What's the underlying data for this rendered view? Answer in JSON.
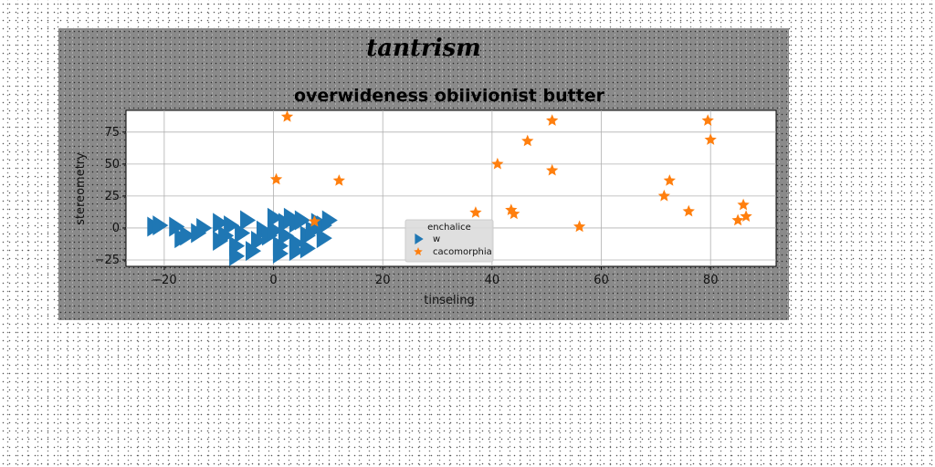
{
  "figure": {
    "suptitle": "tantrism"
  },
  "chart_data": {
    "type": "scatter",
    "title": "overwideness obiivionist butter",
    "xlabel": "tinseling",
    "ylabel": "stereometry",
    "xlim": [
      -27,
      92
    ],
    "ylim": [
      -30,
      92
    ],
    "xticks": [
      -20,
      0,
      20,
      40,
      60,
      80
    ],
    "yticks": [
      -25,
      0,
      25,
      50,
      75
    ],
    "grid": true,
    "legend": {
      "title": "enchalice",
      "placement": "lower-center"
    },
    "series": [
      {
        "name": "w",
        "marker": "triangle-right",
        "color": "#1f77b4",
        "points": [
          [
            -22,
            1
          ],
          [
            -21,
            2
          ],
          [
            -18,
            1
          ],
          [
            -17,
            -8
          ],
          [
            -16,
            -6
          ],
          [
            -14,
            -4
          ],
          [
            -13,
            0
          ],
          [
            -10,
            4
          ],
          [
            -10,
            -10
          ],
          [
            -9,
            -6
          ],
          [
            -8,
            2
          ],
          [
            -7,
            -14
          ],
          [
            -7,
            -22
          ],
          [
            -6,
            -4
          ],
          [
            -5,
            6
          ],
          [
            -4,
            -18
          ],
          [
            -3,
            -10
          ],
          [
            -2,
            -2
          ],
          [
            -1,
            -6
          ],
          [
            0,
            -2
          ],
          [
            0,
            8
          ],
          [
            1,
            -14
          ],
          [
            1,
            -20
          ],
          [
            2,
            4
          ],
          [
            2,
            -6
          ],
          [
            3,
            8
          ],
          [
            4,
            4
          ],
          [
            4,
            -12
          ],
          [
            4,
            -18
          ],
          [
            5,
            6
          ],
          [
            6,
            -6
          ],
          [
            6,
            -16
          ],
          [
            7,
            -2
          ],
          [
            8,
            4
          ],
          [
            9,
            2
          ],
          [
            9,
            -8
          ],
          [
            10,
            6
          ]
        ]
      },
      {
        "name": "cacomorphia",
        "marker": "star",
        "color": "#ff7f0e",
        "points": [
          [
            2.5,
            87
          ],
          [
            0.5,
            38
          ],
          [
            12,
            37
          ],
          [
            7.5,
            5
          ],
          [
            37,
            12
          ],
          [
            41,
            50
          ],
          [
            43.5,
            14
          ],
          [
            44,
            11
          ],
          [
            46.5,
            68
          ],
          [
            51,
            84
          ],
          [
            51,
            45
          ],
          [
            56,
            1
          ],
          [
            71.5,
            25
          ],
          [
            72.5,
            37
          ],
          [
            76,
            13
          ],
          [
            79.5,
            84
          ],
          [
            80,
            69
          ],
          [
            85,
            6
          ],
          [
            86,
            18
          ],
          [
            86.5,
            9
          ]
        ]
      }
    ]
  }
}
